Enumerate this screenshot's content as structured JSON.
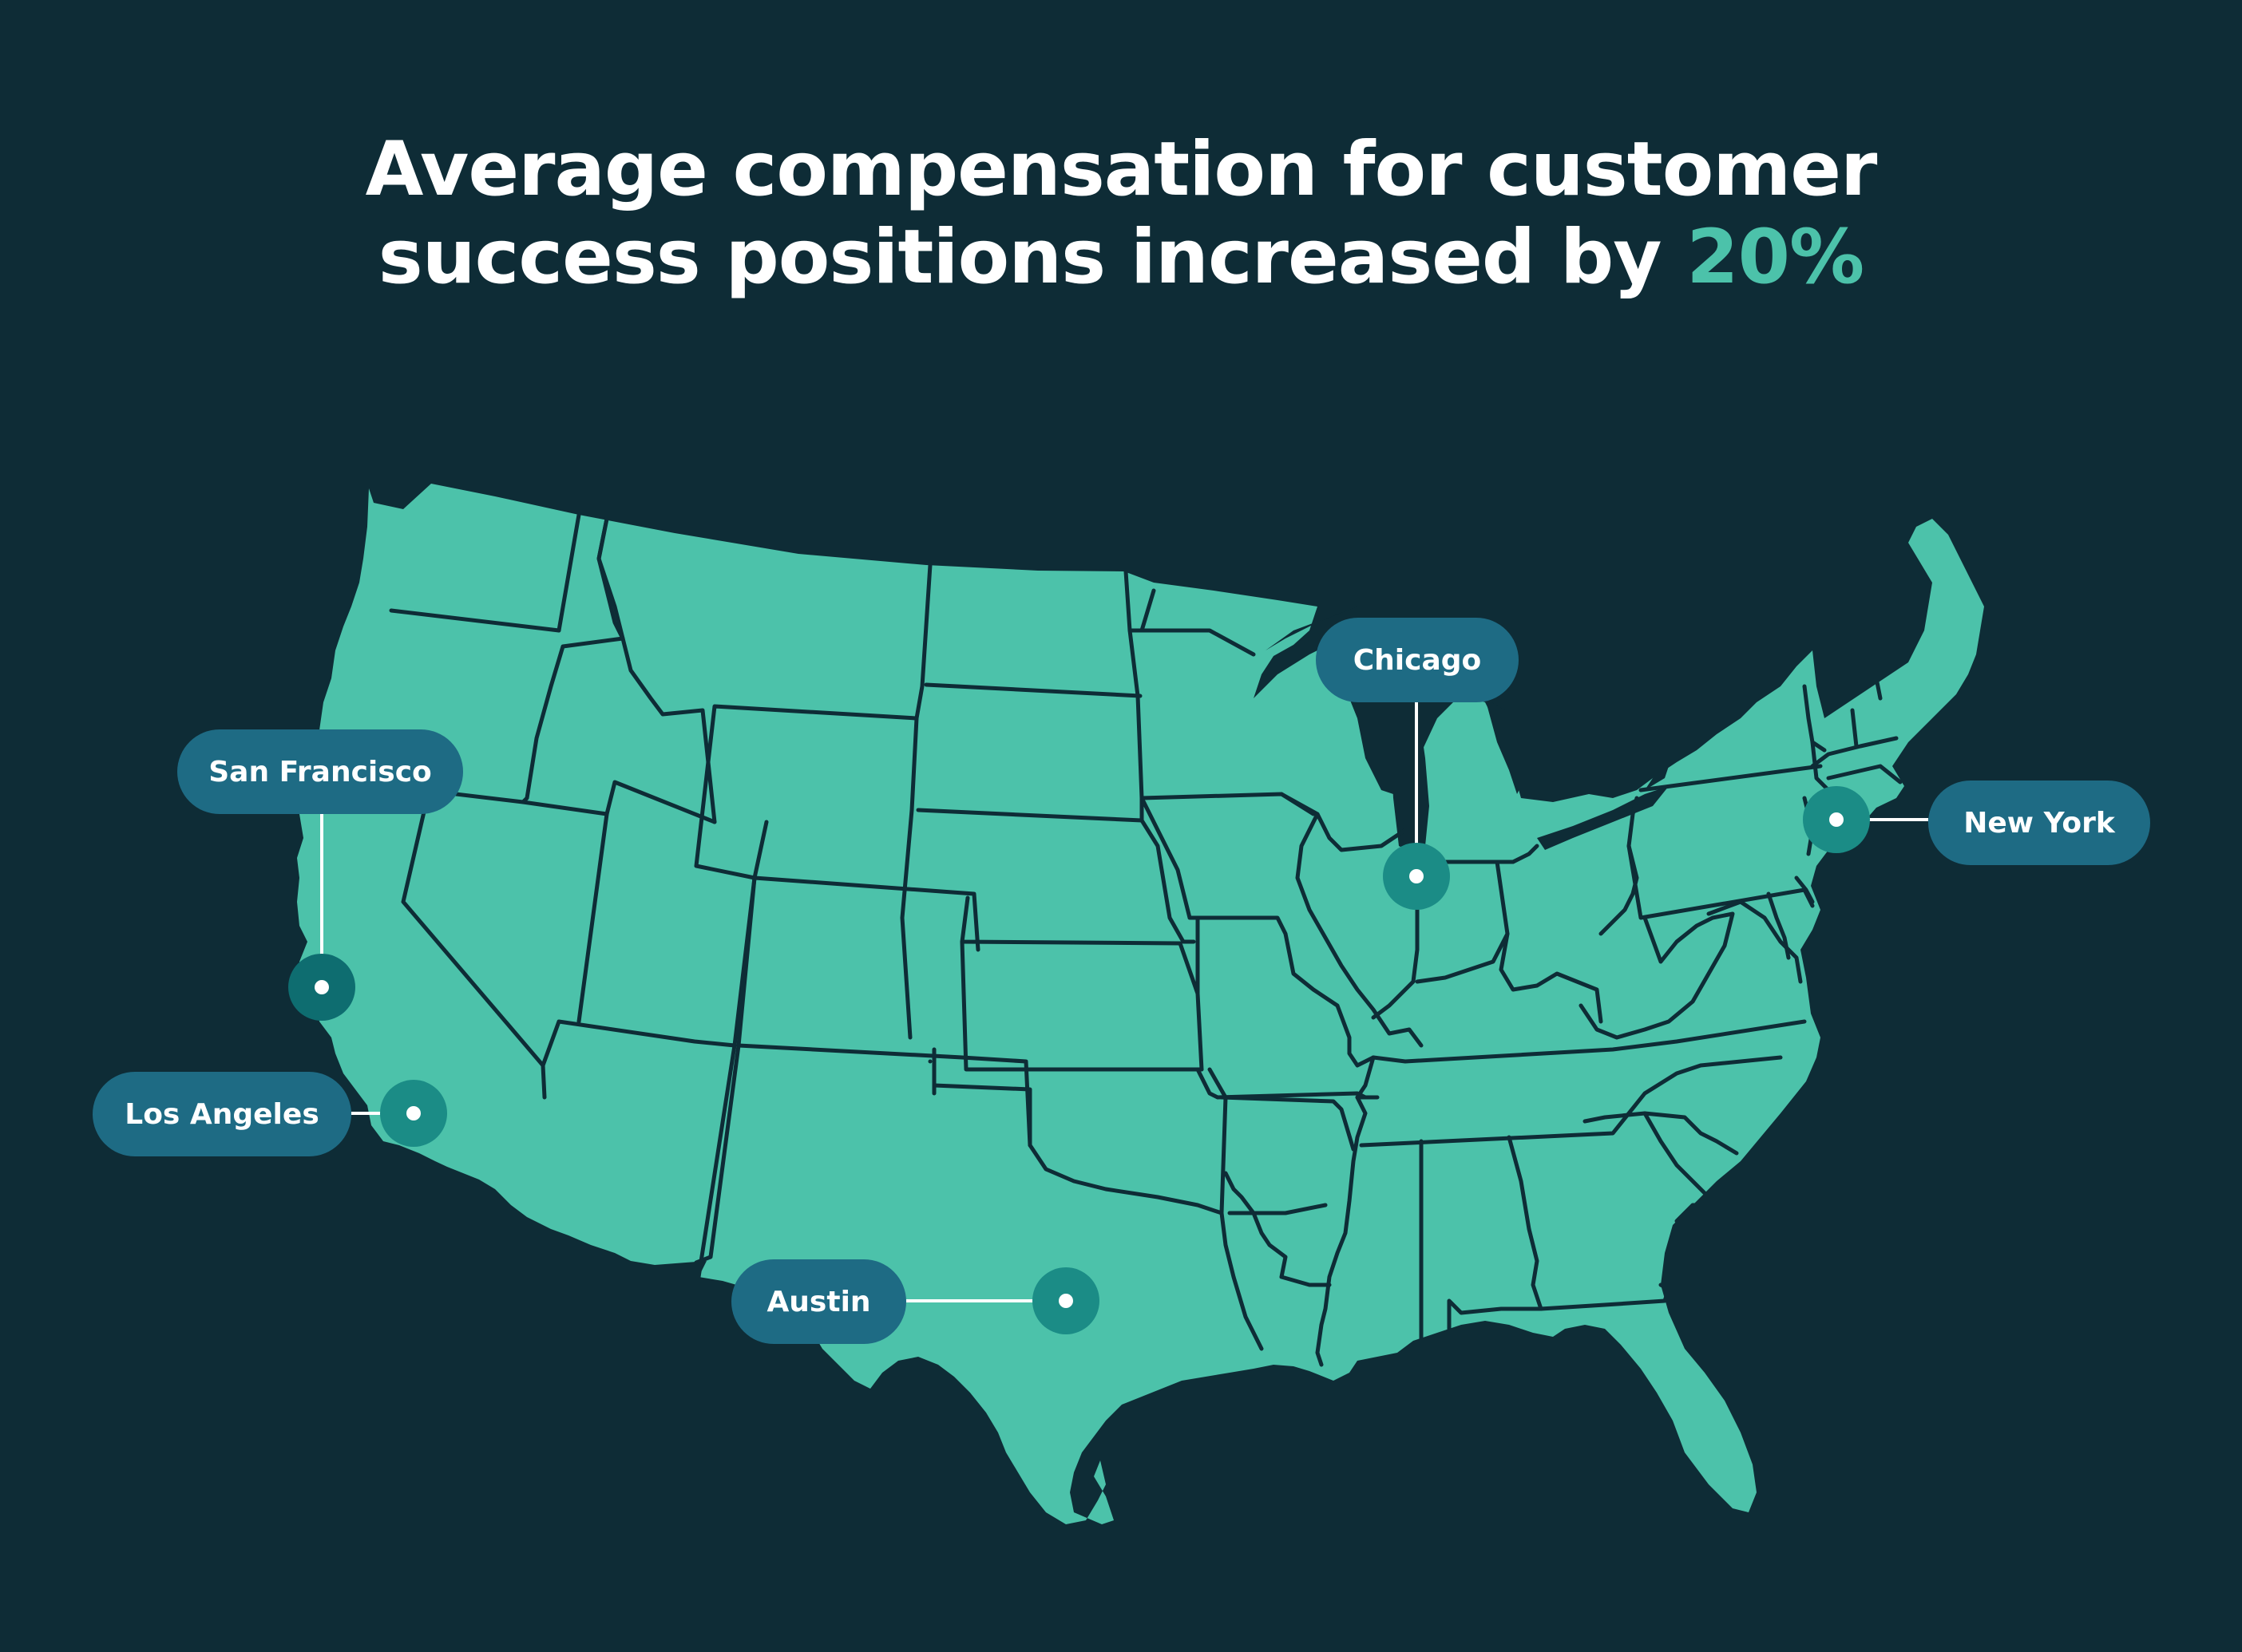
{
  "headline": {
    "line1": "Average compensation for customer",
    "line2_prefix": "success positions increased by ",
    "highlight": "20%"
  },
  "colors": {
    "background": "#0e2c36",
    "land": "#4cc2aa",
    "border": "#0e2c36",
    "accent": "#4cc2aa",
    "label_pill": "#1e6b84",
    "marker_halo": "#1b8c86"
  },
  "cities": {
    "san_francisco": "San Francisco",
    "los_angeles": "Los Angeles",
    "chicago": "Chicago",
    "new_york": "New York",
    "austin": "Austin"
  }
}
